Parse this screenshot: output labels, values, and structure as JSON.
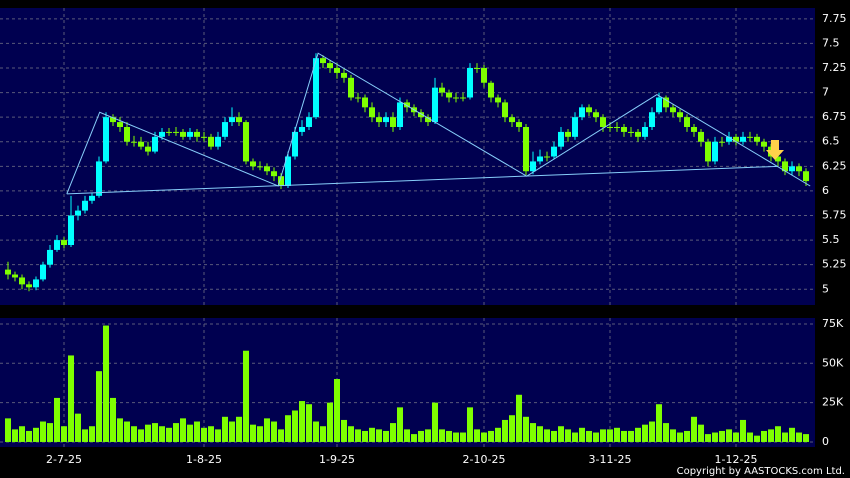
{
  "chart_data": [
    {
      "type": "candlestick",
      "open": [
        5.2,
        5.15,
        5.12,
        5.05,
        5.02,
        5.1,
        5.25,
        5.4,
        5.5,
        5.45,
        5.75,
        5.8,
        5.9,
        5.95,
        6.3,
        6.75,
        6.7,
        6.65,
        6.5,
        6.5,
        6.45,
        6.4,
        6.55,
        6.6,
        6.6,
        6.6,
        6.55,
        6.6,
        6.55,
        6.55,
        6.45,
        6.55,
        6.7,
        6.75,
        6.7,
        6.3,
        6.25,
        6.25,
        6.2,
        6.15,
        6.05,
        6.35,
        6.6,
        6.65,
        6.75,
        7.35,
        7.3,
        7.25,
        7.2,
        7.15,
        6.95,
        6.95,
        6.85,
        6.75,
        6.7,
        6.75,
        6.65,
        6.9,
        6.85,
        6.8,
        6.75,
        6.7,
        7.05,
        7.0,
        6.95,
        6.95,
        6.95,
        7.25,
        7.25,
        7.1,
        6.95,
        6.9,
        6.75,
        6.7,
        6.65,
        6.2,
        6.3,
        6.35,
        6.35,
        6.45,
        6.6,
        6.55,
        6.75,
        6.85,
        6.8,
        6.75,
        6.65,
        6.65,
        6.65,
        6.6,
        6.6,
        6.55,
        6.65,
        6.8,
        6.95,
        6.85,
        6.8,
        6.75,
        6.65,
        6.6,
        6.5,
        6.3,
        6.5,
        6.5,
        6.55,
        6.5,
        6.55,
        6.55,
        6.5,
        6.45,
        6.35,
        6.3,
        6.2,
        6.25,
        6.2
      ],
      "high": [
        5.28,
        5.18,
        5.15,
        5.08,
        5.13,
        5.28,
        5.45,
        5.55,
        5.53,
        5.95,
        5.85,
        5.95,
        5.98,
        6.35,
        6.8,
        6.78,
        6.75,
        6.7,
        6.56,
        6.55,
        6.5,
        6.6,
        6.64,
        6.64,
        6.65,
        6.63,
        6.64,
        6.63,
        6.6,
        6.58,
        6.6,
        6.75,
        6.85,
        6.8,
        6.72,
        6.33,
        6.3,
        6.28,
        6.24,
        6.18,
        6.4,
        6.65,
        6.72,
        6.8,
        7.4,
        7.38,
        7.33,
        7.3,
        7.25,
        7.18,
        7.0,
        6.98,
        6.9,
        6.8,
        6.8,
        6.8,
        6.95,
        6.93,
        6.88,
        6.83,
        6.78,
        7.15,
        7.1,
        7.03,
        7.0,
        7.0,
        7.3,
        7.3,
        7.28,
        7.12,
        6.98,
        6.93,
        6.78,
        6.73,
        6.68,
        6.4,
        6.42,
        6.4,
        6.5,
        6.65,
        6.63,
        6.8,
        6.88,
        6.88,
        6.83,
        6.78,
        6.7,
        6.7,
        6.68,
        6.65,
        6.63,
        6.7,
        6.85,
        7.0,
        6.97,
        6.88,
        6.83,
        6.78,
        6.68,
        6.63,
        6.53,
        6.55,
        6.55,
        6.6,
        6.58,
        6.6,
        6.6,
        6.58,
        6.53,
        6.48,
        6.38,
        6.33,
        6.3,
        6.28,
        6.23
      ],
      "low": [
        5.1,
        5.08,
        5.0,
        4.98,
        4.99,
        5.08,
        5.22,
        5.38,
        5.42,
        5.43,
        5.7,
        5.77,
        5.87,
        5.93,
        6.28,
        6.66,
        6.6,
        6.46,
        6.45,
        6.42,
        6.36,
        6.38,
        6.52,
        6.56,
        6.56,
        6.52,
        6.52,
        6.5,
        6.5,
        6.42,
        6.42,
        6.52,
        6.66,
        6.66,
        6.27,
        6.21,
        6.21,
        6.16,
        6.1,
        6.02,
        6.03,
        6.32,
        6.56,
        6.62,
        6.73,
        7.25,
        7.2,
        7.14,
        7.1,
        6.92,
        6.9,
        6.8,
        6.7,
        6.65,
        6.65,
        6.6,
        6.62,
        6.8,
        6.76,
        6.7,
        6.66,
        6.68,
        6.96,
        6.9,
        6.9,
        6.91,
        6.93,
        7.2,
        7.05,
        6.9,
        6.85,
        6.7,
        6.65,
        6.6,
        6.16,
        6.17,
        6.27,
        6.3,
        6.32,
        6.42,
        6.5,
        6.52,
        6.72,
        6.76,
        6.7,
        6.6,
        6.6,
        6.6,
        6.55,
        6.55,
        6.5,
        6.52,
        6.62,
        6.78,
        6.8,
        6.75,
        6.7,
        6.6,
        6.55,
        6.45,
        6.25,
        6.27,
        6.45,
        6.47,
        6.46,
        6.47,
        6.5,
        6.46,
        6.4,
        6.3,
        6.25,
        6.16,
        6.16,
        6.15,
        6.05
      ],
      "close": [
        5.15,
        5.12,
        5.05,
        5.02,
        5.1,
        5.25,
        5.4,
        5.5,
        5.45,
        5.75,
        5.8,
        5.9,
        5.95,
        6.3,
        6.75,
        6.7,
        6.65,
        6.5,
        6.5,
        6.45,
        6.4,
        6.55,
        6.6,
        6.6,
        6.6,
        6.55,
        6.6,
        6.55,
        6.55,
        6.45,
        6.55,
        6.7,
        6.75,
        6.7,
        6.3,
        6.25,
        6.25,
        6.2,
        6.15,
        6.05,
        6.35,
        6.6,
        6.65,
        6.75,
        7.35,
        7.3,
        7.25,
        7.2,
        7.15,
        6.95,
        6.95,
        6.85,
        6.75,
        6.7,
        6.75,
        6.65,
        6.9,
        6.85,
        6.8,
        6.75,
        6.7,
        7.05,
        7.0,
        6.95,
        6.95,
        6.95,
        7.25,
        7.25,
        7.1,
        6.95,
        6.9,
        6.75,
        6.7,
        6.65,
        6.2,
        6.3,
        6.35,
        6.35,
        6.45,
        6.6,
        6.55,
        6.75,
        6.85,
        6.8,
        6.75,
        6.65,
        6.65,
        6.65,
        6.6,
        6.6,
        6.55,
        6.65,
        6.8,
        6.95,
        6.85,
        6.8,
        6.75,
        6.65,
        6.6,
        6.5,
        6.3,
        6.5,
        6.5,
        6.55,
        6.5,
        6.55,
        6.55,
        6.5,
        6.45,
        6.35,
        6.3,
        6.2,
        6.25,
        6.2,
        6.1
      ],
      "up_color": "#00ffff",
      "down_color": "#7fff00",
      "overlays": [
        {
          "color": "#87cefa",
          "points": [
            [
              8.4,
              5.97
            ],
            [
              13.1,
              6.8
            ],
            [
              38.6,
              6.05
            ],
            [
              44.3,
              7.4
            ],
            [
              74.1,
              6.15
            ],
            [
              92.7,
              6.98
            ],
            [
              114.6,
              6.05
            ]
          ]
        },
        {
          "color": "#87cefa",
          "points": [
            [
              8.4,
              5.97
            ],
            [
              110,
              6.25
            ]
          ]
        }
      ],
      "ylim": [
        4.84,
        7.86
      ],
      "yticks": [
        5,
        5.25,
        5.5,
        5.75,
        6,
        6.25,
        6.5,
        6.75,
        7,
        7.25,
        7.5,
        7.75
      ],
      "grid": true
    },
    {
      "type": "bar",
      "categories": [
        null,
        null,
        null,
        null,
        null,
        null,
        null,
        null,
        "2-7-25",
        null,
        null,
        null,
        null,
        null,
        null,
        null,
        null,
        null,
        null,
        null,
        null,
        null,
        null,
        null,
        null,
        null,
        null,
        null,
        "1-8-25",
        null,
        null,
        null,
        null,
        null,
        null,
        null,
        null,
        null,
        null,
        null,
        null,
        null,
        null,
        null,
        null,
        null,
        null,
        "1-9-25",
        null,
        null,
        null,
        null,
        null,
        null,
        null,
        null,
        null,
        null,
        null,
        null,
        null,
        null,
        null,
        null,
        null,
        null,
        null,
        null,
        "2-10-25",
        null,
        null,
        null,
        null,
        null,
        null,
        null,
        null,
        null,
        null,
        null,
        null,
        null,
        null,
        null,
        null,
        null,
        "3-11-25",
        null,
        null,
        null,
        null,
        null,
        null,
        null,
        null,
        null,
        null,
        null,
        null,
        null,
        null,
        null,
        null,
        null,
        "1-12-25",
        null,
        null,
        null,
        null,
        null,
        null,
        null,
        null,
        null,
        null
      ],
      "values": [
        15000,
        8000,
        10000,
        7000,
        9000,
        13000,
        12000,
        28000,
        10000,
        55000,
        18000,
        8000,
        10000,
        45000,
        74000,
        28000,
        15000,
        13000,
        10000,
        8000,
        11000,
        12000,
        10000,
        9000,
        12000,
        15000,
        11000,
        13000,
        9000,
        10000,
        8000,
        16000,
        13000,
        16000,
        58000,
        11000,
        10000,
        15000,
        13000,
        8000,
        17000,
        20000,
        26000,
        24000,
        13000,
        10000,
        25000,
        40000,
        14000,
        10000,
        8000,
        7000,
        9000,
        8000,
        7000,
        12000,
        22000,
        8000,
        5000,
        7000,
        8000,
        25000,
        8000,
        7000,
        6000,
        6000,
        22000,
        8000,
        6000,
        7000,
        9000,
        14000,
        17000,
        30000,
        16000,
        12000,
        10000,
        8000,
        7000,
        10000,
        8000,
        6000,
        9000,
        7000,
        6000,
        8000,
        8000,
        9000,
        7000,
        7000,
        9000,
        11000,
        13000,
        24000,
        12000,
        8000,
        6000,
        7000,
        16000,
        11000,
        5000,
        6000,
        7000,
        8000,
        6000,
        14000,
        6000,
        4000,
        7000,
        8000,
        10000,
        6000,
        9000,
        6000,
        5000
      ],
      "color": "#7fff00",
      "ylim": [
        -3200,
        78800
      ],
      "yticks": [
        0,
        {
          "value": 25000,
          "label": "25K"
        },
        {
          "value": 50000,
          "label": "50K"
        },
        {
          "value": 75000,
          "label": "75K"
        }
      ],
      "grid": true
    }
  ],
  "footer": "Copyright by AASTOCKS.com Ltd."
}
